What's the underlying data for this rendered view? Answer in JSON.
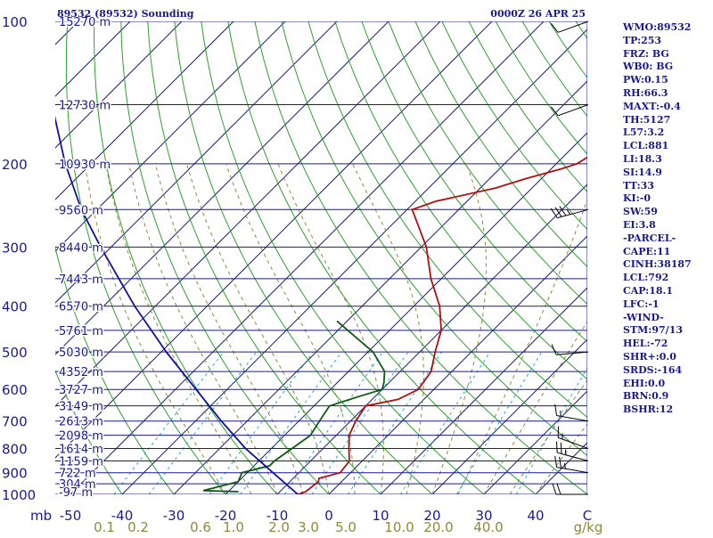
{
  "header": {
    "station": "89532 (89532) Sounding",
    "datetime": "0000Z 26 APR 25"
  },
  "indices": [
    "WMO:89532",
    "TP:253",
    "FRZ: BG",
    "WB0: BG",
    "PW:0.15",
    "RH:66.3",
    "MAXT:-0.4",
    "TH:5127",
    "L57:3.2",
    "LCL:881",
    "LI:18.3",
    "SI:14.9",
    "TT:33",
    "KI:-0",
    "SW:59",
    "EI:3.8",
    "-PARCEL-",
    "CAPE:11",
    "CINH:38187",
    "LCL:792",
    "CAP:18.1",
    "LFC:-1",
    "-WIND-",
    "STM:97/13",
    "HEL:-72",
    "SHR+:0.0",
    "SRDS:-164",
    "EHI:0.0",
    "BRN:0.9",
    "BSHR:12"
  ],
  "colors": {
    "pressure_lines": "#1a1a8c",
    "isotherms": "#1a1a8c",
    "dry_adiabats": "#2ca02c",
    "moist_adiabats": "#8b8b3a",
    "mixing_ratio": "#29a3d6",
    "temperature": "#b01010",
    "dewpoint": "#0e5a0e",
    "parcel": "#1010a0",
    "mixing_ratio_labels": "#8b8b3a"
  },
  "chart_data": {
    "type": "line",
    "title": "",
    "pressure_axis_unit": "mb",
    "mixing_ratio_unit": "g/kg",
    "pressure_levels": [
      100,
      200,
      300,
      400,
      500,
      600,
      700,
      800,
      900,
      1000
    ],
    "height_labels": [
      {
        "p": 100,
        "label": "15270 m"
      },
      {
        "p": 150,
        "label": "12730 m"
      },
      {
        "p": 200,
        "label": "10930 m"
      },
      {
        "p": 250,
        "label": "9560 m"
      },
      {
        "p": 300,
        "label": "8440 m"
      },
      {
        "p": 350,
        "label": "7443 m"
      },
      {
        "p": 400,
        "label": "6570 m"
      },
      {
        "p": 450,
        "label": "5761 m"
      },
      {
        "p": 500,
        "label": "5030 m"
      },
      {
        "p": 550,
        "label": "4352 m"
      },
      {
        "p": 600,
        "label": "3727 m"
      },
      {
        "p": 650,
        "label": "3149 m"
      },
      {
        "p": 700,
        "label": "2613 m"
      },
      {
        "p": 750,
        "label": "2098 m"
      },
      {
        "p": 800,
        "label": "1614 m"
      },
      {
        "p": 850,
        "label": "1159 m"
      },
      {
        "p": 900,
        "label": "722 m"
      },
      {
        "p": 950,
        "label": "304 m"
      },
      {
        "p": 987,
        "label": "-97 m"
      }
    ],
    "temperature_ticks": [
      -50,
      -40,
      -30,
      -20,
      -10,
      0,
      10,
      20,
      30,
      40
    ],
    "mixing_ratio_ticks": [
      "0.1",
      "0.2",
      "0.6",
      "1.0",
      "2.0",
      "3.0",
      "5.0",
      "10.0",
      "20.0",
      "40.0"
    ],
    "series": [
      {
        "name": "temperature",
        "points": [
          [
            1000,
            -6
          ],
          [
            987,
            -5
          ],
          [
            940,
            -4.5
          ],
          [
            925,
            -5
          ],
          [
            900,
            -2
          ],
          [
            850,
            -2.5
          ],
          [
            800,
            -5
          ],
          [
            750,
            -7.5
          ],
          [
            700,
            -9
          ],
          [
            650,
            -10
          ],
          [
            630,
            -5
          ],
          [
            600,
            -3
          ],
          [
            550,
            -4
          ],
          [
            500,
            -7
          ],
          [
            450,
            -10
          ],
          [
            400,
            -15
          ],
          [
            350,
            -22
          ],
          [
            300,
            -29
          ],
          [
            250,
            -39
          ],
          [
            240,
            -36
          ],
          [
            225,
            -27
          ],
          [
            215,
            -23
          ],
          [
            205,
            -18
          ],
          [
            200,
            -16
          ],
          [
            170,
            -12
          ],
          [
            160,
            -12
          ],
          [
            140,
            -9
          ],
          [
            125,
            -5
          ],
          [
            115,
            -3
          ],
          [
            100,
            0
          ]
        ]
      },
      {
        "name": "dewpoint",
        "points": [
          [
            987,
            -18
          ],
          [
            982,
            -25
          ],
          [
            940,
            -20
          ],
          [
            900,
            -21
          ],
          [
            870,
            -17
          ],
          [
            850,
            -17
          ],
          [
            800,
            -16
          ],
          [
            750,
            -15
          ],
          [
            700,
            -16
          ],
          [
            650,
            -17
          ],
          [
            620,
            -13
          ],
          [
            600,
            -10
          ],
          [
            580,
            -11
          ],
          [
            550,
            -13
          ],
          [
            500,
            -19
          ],
          [
            430,
            -32
          ]
        ]
      },
      {
        "name": "parcel",
        "points": [
          [
            1000,
            -6
          ],
          [
            900,
            -15
          ],
          [
            800,
            -25
          ],
          [
            700,
            -35
          ],
          [
            600,
            -46
          ],
          [
            500,
            -59
          ],
          [
            400,
            -74
          ],
          [
            300,
            -92
          ],
          [
            250,
            -103
          ],
          [
            200,
            -115
          ],
          [
            150,
            -129
          ],
          [
            120,
            -139
          ],
          [
            100,
            -145
          ]
        ]
      }
    ],
    "wind_barbs": [
      {
        "p": 100,
        "dir": 250,
        "kt": 10
      },
      {
        "p": 150,
        "dir": 250,
        "kt": 10
      },
      {
        "p": 250,
        "dir": 255,
        "kt": 35
      },
      {
        "p": 500,
        "dir": 265,
        "kt": 10
      },
      {
        "p": 700,
        "dir": 280,
        "kt": 15
      },
      {
        "p": 800,
        "dir": 290,
        "kt": 15
      },
      {
        "p": 850,
        "dir": 285,
        "kt": 25
      },
      {
        "p": 900,
        "dir": 280,
        "kt": 25
      },
      {
        "p": 1000,
        "dir": 270,
        "kt": 20
      }
    ],
    "grid": true
  }
}
